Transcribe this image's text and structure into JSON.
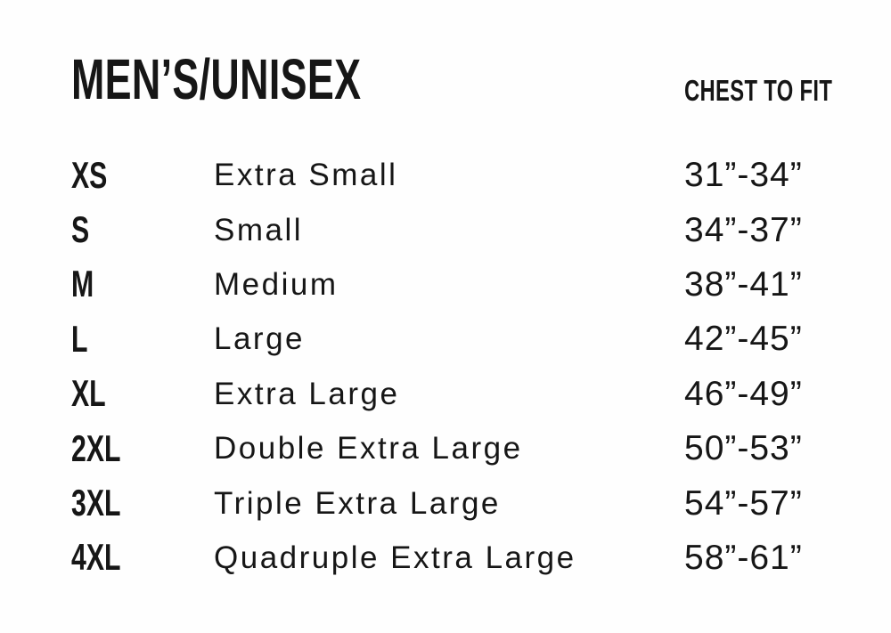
{
  "page": {
    "background": "#fefefe",
    "text_color": "#161616"
  },
  "header": {
    "title": "MEN’S/UNISEX",
    "measure_label": "CHEST TO FIT"
  },
  "size_chart": {
    "rows": [
      {
        "code": "XS",
        "name": "Extra Small",
        "chest": "31”-34”"
      },
      {
        "code": "S",
        "name": "Small",
        "chest": "34”-37”"
      },
      {
        "code": "M",
        "name": "Medium",
        "chest": "38”-41”"
      },
      {
        "code": "L",
        "name": "Large",
        "chest": "42”-45”"
      },
      {
        "code": "XL",
        "name": "Extra Large",
        "chest": "46”-49”"
      },
      {
        "code": "2XL",
        "name": "Double Extra Large",
        "chest": "50”-53”"
      },
      {
        "code": "3XL",
        "name": "Triple Extra Large",
        "chest": "54”-57”"
      },
      {
        "code": "4XL",
        "name": "Quadruple Extra Large",
        "chest": "58”-61”"
      }
    ]
  }
}
